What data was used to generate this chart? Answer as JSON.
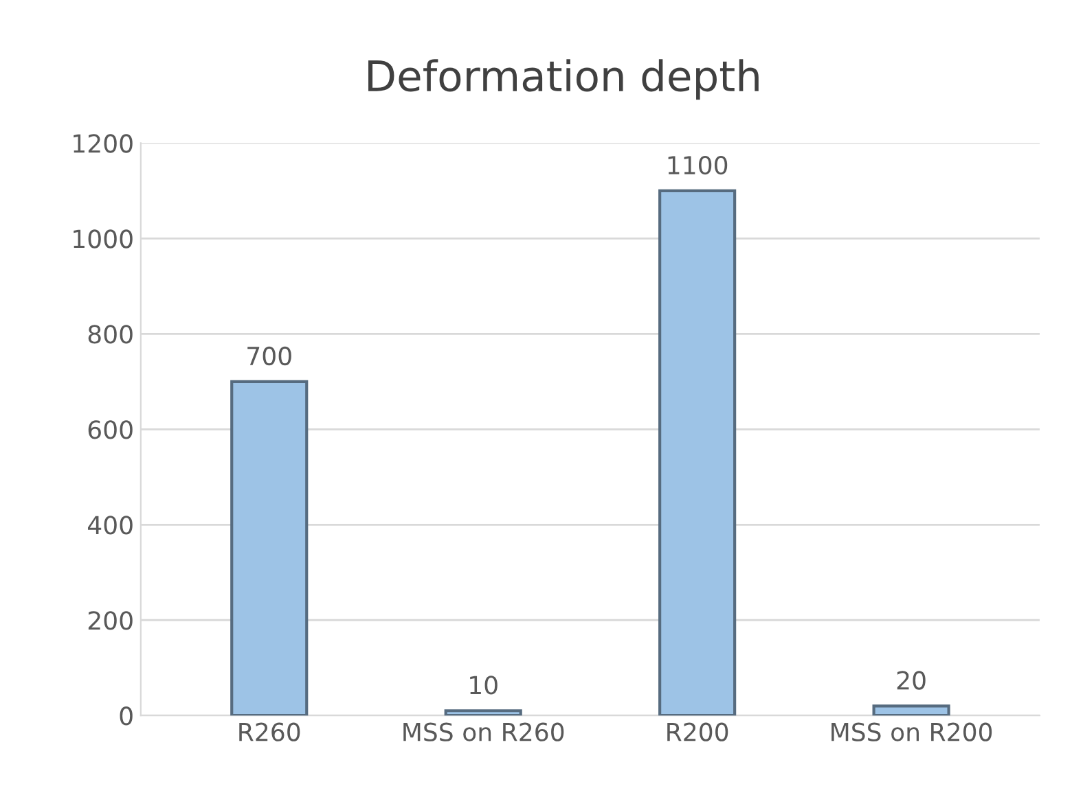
{
  "chart_data": {
    "type": "bar",
    "title": "Deformation depth",
    "categories": [
      "R260",
      "MSS on R260",
      "R200",
      "MSS on R200"
    ],
    "values": [
      700,
      10,
      1100,
      20
    ],
    "color": "#9dc3e6",
    "ylim": [
      0,
      1200
    ],
    "yticks": [
      0,
      200,
      400,
      600,
      800,
      1000,
      1200
    ],
    "grid": "y",
    "data_labels": true
  }
}
